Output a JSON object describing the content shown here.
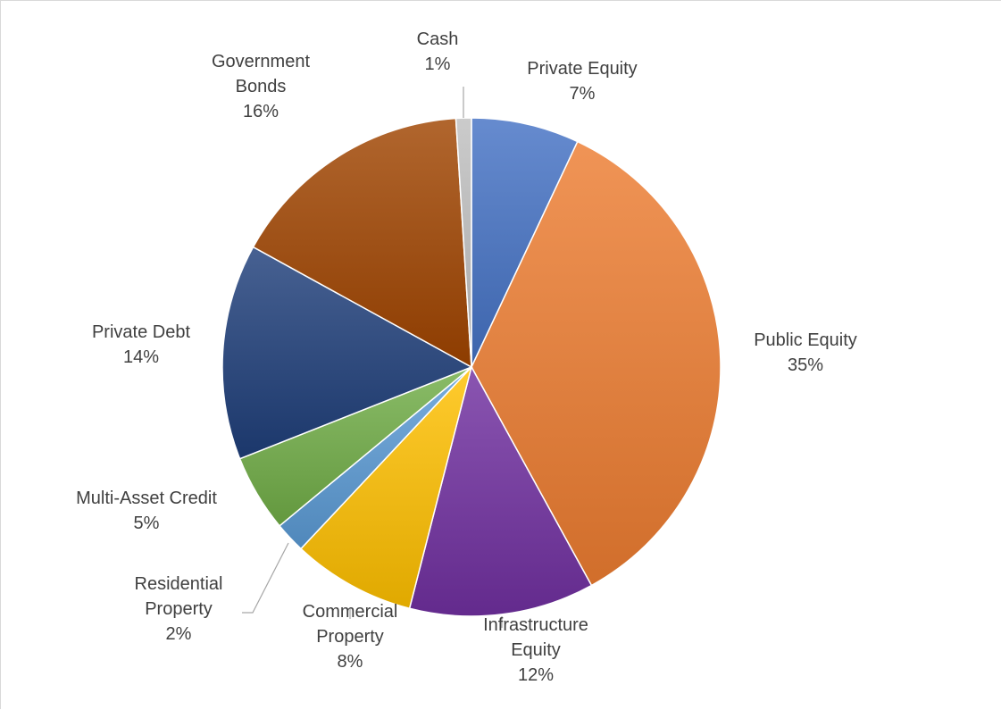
{
  "chart_data": {
    "type": "pie",
    "title": "",
    "legend": "none",
    "start_angle_deg": 0,
    "direction": "clockwise",
    "slices": [
      {
        "label_lines": [
          "Private Equity"
        ],
        "value": 7,
        "value_label": "7%",
        "color": "#4472C4"
      },
      {
        "label_lines": [
          "Public Equity"
        ],
        "value": 35,
        "value_label": "35%",
        "color": "#ED7D31"
      },
      {
        "label_lines": [
          "Infrastructure",
          "Equity"
        ],
        "value": 12,
        "value_label": "12%",
        "color": "#7030A0"
      },
      {
        "label_lines": [
          "Commercial",
          "Property"
        ],
        "value": 8,
        "value_label": "8%",
        "color": "#FFC000"
      },
      {
        "label_lines": [
          "Residential",
          "Property"
        ],
        "value": 2,
        "value_label": "2%",
        "color": "#5B9BD5"
      },
      {
        "label_lines": [
          "Multi-Asset Credit"
        ],
        "value": 5,
        "value_label": "5%",
        "color": "#70AD47"
      },
      {
        "label_lines": [
          "Private Debt"
        ],
        "value": 14,
        "value_label": "14%",
        "color": "#1F3E7A"
      },
      {
        "label_lines": [
          "Government",
          "Bonds"
        ],
        "value": 16,
        "value_label": "16%",
        "color": "#A04400"
      },
      {
        "label_lines": [
          "Cash"
        ],
        "value": 1,
        "value_label": "1%",
        "color": "#BFBFBF"
      }
    ]
  }
}
